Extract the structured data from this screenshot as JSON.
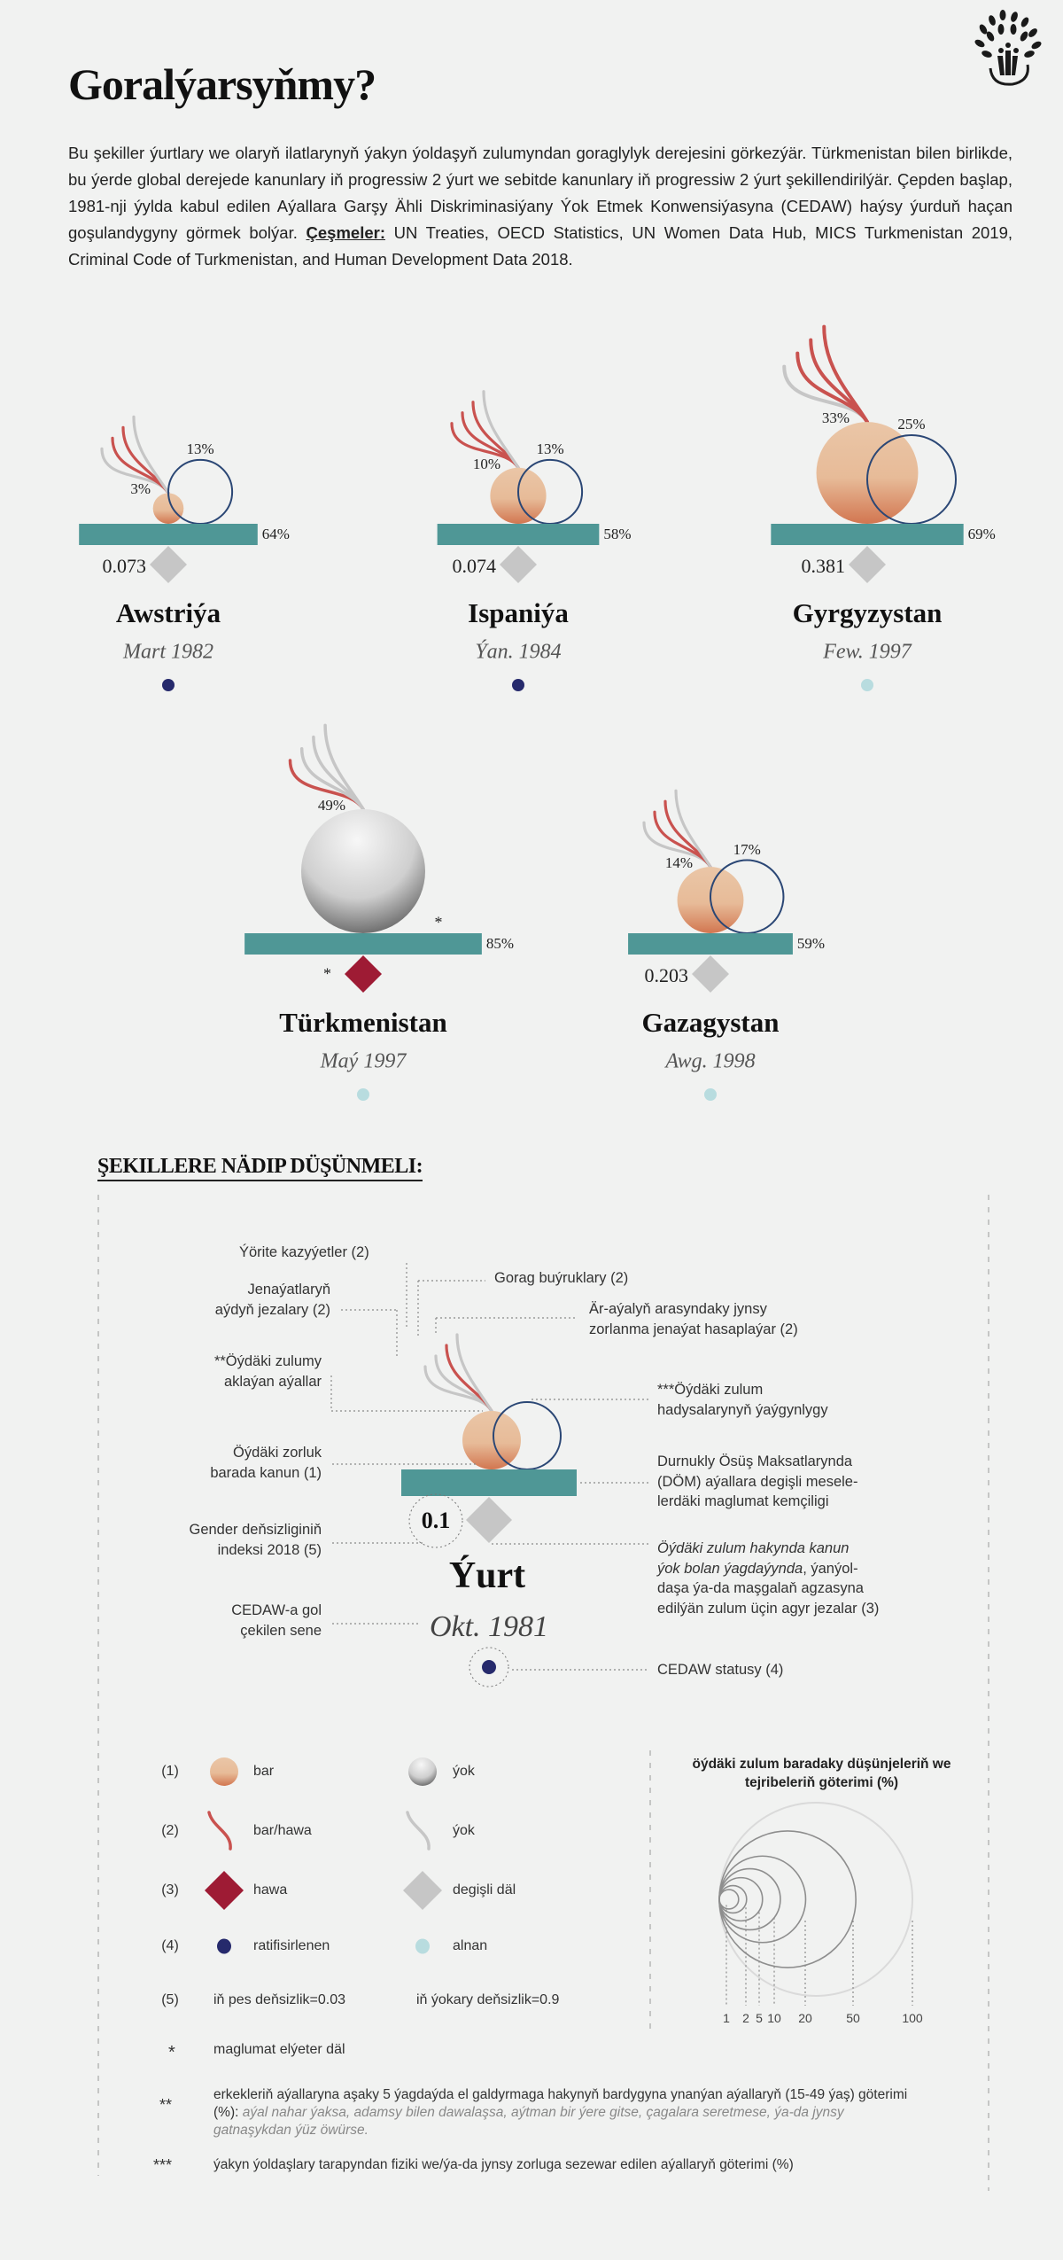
{
  "header": {
    "title": "Goralýarsyňmy?",
    "intro": "Bu şekiller ýurtlary we olaryň ilatlarynyň ýakyn ýoldaşyň zulumyndan goraglylyk derejesini görkezýär. Türkmenistan bilen birlikde, bu ýerde global derejede kanunlary iň progressiw 2 ýurt we sebitde kanunlary iň progressiw 2 ýurt şekillendirilýär. Çepden başlap, 1981-nji ýylda kabul edilen Aýallara Garşy Ähli Diskriminasiýany Ýok Etmek Konwensiýasyna (CEDAW) haýsy ýurduň haçan goşulandygyny görmek bolýar.",
    "sources_label": "Çeşmeler:",
    "sources": "UN Treaties, OECD Statistics, UN Women Data Hub, MICS Turkmenistan 2019, Criminal Code of Turkmenistan, and Human Development Data 2018.",
    "logo_icon": "tree-people-logo"
  },
  "colors": {
    "background": "#f1f2f1",
    "teal_bar": "#4f9796",
    "ball_light": "#e9c3a3",
    "ball_dark": "#d27a52",
    "circle_stroke": "#2b4775",
    "plume_red": "#c9524f",
    "plume_gray": "#c6c6c6",
    "diamond_red": "#9e1b34",
    "diamond_gray": "#c6c6c6",
    "dot_ratified": "#262a6c",
    "dot_acceded": "#b8dcdf"
  },
  "countries": [
    {
      "name": "Awstriýa",
      "date": "Mart 1982",
      "ball_pct": "3%",
      "ball_value": 3,
      "ball_status": "bar",
      "circle_pct": "13%",
      "circle_value": 13,
      "bar_pct": "64%",
      "bar_value": 64,
      "gii": "0.073",
      "gii_status": "degişli däl",
      "cedaw": "ratifisirlenen",
      "plumes": [
        "ýok",
        "bar",
        "bar",
        "ýok"
      ]
    },
    {
      "name": "Ispaniýa",
      "date": "Ýan. 1984",
      "ball_pct": "10%",
      "ball_value": 10,
      "ball_status": "bar",
      "circle_pct": "13%",
      "circle_value": 13,
      "bar_pct": "58%",
      "bar_value": 58,
      "gii": "0.074",
      "gii_status": "degişli däl",
      "cedaw": "ratifisirlenen",
      "plumes": [
        "bar",
        "bar",
        "bar",
        "ýok"
      ]
    },
    {
      "name": "Gyrgyzystan",
      "date": "Few. 1997",
      "ball_pct": "33%",
      "ball_value": 33,
      "ball_status": "bar",
      "circle_pct": "25%",
      "circle_value": 25,
      "bar_pct": "69%",
      "bar_value": 69,
      "gii": "0.381",
      "gii_status": "degişli däl",
      "cedaw": "alnan",
      "plumes": [
        "ýok",
        "bar",
        "bar",
        "bar"
      ]
    },
    {
      "name": "Türkmenistan",
      "date": "Maý 1997",
      "ball_pct": "49%",
      "ball_value": 49,
      "ball_status": "ýok",
      "circle_pct": "*",
      "circle_value": null,
      "bar_pct": "85%",
      "bar_value": 85,
      "gii": "*",
      "gii_status": "hawa",
      "cedaw": "alnan",
      "plumes": [
        "bar",
        "ýok",
        "ýok",
        "ýok"
      ]
    },
    {
      "name": "Gazagystan",
      "date": "Awg. 1998",
      "ball_pct": "14%",
      "ball_value": 14,
      "ball_status": "bar",
      "circle_pct": "17%",
      "circle_value": 17,
      "bar_pct": "59%",
      "bar_value": 59,
      "gii": "0.203",
      "gii_status": "degişli däl",
      "cedaw": "alnan",
      "plumes": [
        "ýok",
        "bar",
        "bar",
        "ýok"
      ]
    }
  ],
  "guide": {
    "heading": "ŞEKILLERE NÄDIP DÜŞÜNMELI:",
    "country": "Ýurt",
    "date": "Okt. 1981",
    "gii": "0.1",
    "labels": {
      "special_courts": "Ýörite kazyýetler (2)",
      "protection_orders": "Gorag buýruklary (2)",
      "penalties_1": "Jenaýatlaryň",
      "penalties_2": "aýdyň jezalary (2)",
      "marital_rape_1": "Är-aýalyň arasyndaky jynsy",
      "marital_rape_2": "zorlanma jenaýat hasaplaýar (2)",
      "justify_1": "**Öýdäki zulumy",
      "justify_2": "aklaýan aýallar",
      "prevalence_1": "***Öýdäki zulum",
      "prevalence_2": "hadysalarynyň ýaýgynlygy",
      "dv_law_1": "Öýdäki zorluk",
      "dv_law_2": "barada kanun (1)",
      "sdg_1": "Durnukly Ösüş Maksatlarynda",
      "sdg_2": "(DÖM) aýallara degişli mesele-",
      "sdg_3": "lerdäki maglumat kemçiligi",
      "gii_1": "Gender deňsizliginiň",
      "gii_2": "indeksi 2018 (5)",
      "penal_1": "Öýdäki zulum hakynda kanun",
      "penal_2a": "ýok bolan ýagdaýynda",
      "penal_2b": ", ýanýol-",
      "penal_3": "daşa ýa-da maşgalaň agzasyna",
      "penal_4": "edilýän zulum üçin agyr jezalar (3)",
      "cedaw_year_1": "CEDAW-a gol",
      "cedaw_year_2": "çekilen sene",
      "cedaw_status": "CEDAW statusy (4)"
    }
  },
  "legend": {
    "rows": [
      {
        "num": "(1)",
        "a": "bar",
        "b": "ýok"
      },
      {
        "num": "(2)",
        "a": "bar/hawa",
        "b": "ýok"
      },
      {
        "num": "(3)",
        "a": "hawa",
        "b": "degişli däl"
      },
      {
        "num": "(4)",
        "a": "ratifisirlenen",
        "b": "alnan"
      },
      {
        "num": "(5)",
        "a": "iň pes deňsizlik=0.03",
        "b": "iň ýokary deňsizlik=0.9"
      }
    ],
    "size_title": "öýdäki zulum baradaky düşünjeleriň we tejribeleriň göterimi (%)",
    "size_ticks": [
      "1",
      "2",
      "5",
      "10",
      "20",
      "50",
      "100"
    ],
    "size_values": [
      1,
      2,
      5,
      10,
      20,
      50,
      100
    ]
  },
  "footnotes": {
    "star_mark": "*",
    "star": "maglumat elýeter däl",
    "dstar_mark": "**",
    "dstar": "erkekleriň aýallaryna aşaky 5 ýagdaýda el galdyrmaga hakynyň bardygyna ynanýan aýallaryň (15-49 ýaş) göterimi (%): ",
    "dstar_italic": "aýal nahar ýaksa, adamsy bilen dawalaşsa, aýtman bir ýere gitse, çagalara seretmese, ýa-da jynsy gatnaşykdan ýüz öwürse.",
    "tstar_mark": "***",
    "tstar": "ýakyn ýoldaşlary tarapyndan fiziki we/ýa-da jynsy zorluga sezewar edilen aýallaryň göterimi (%)"
  }
}
